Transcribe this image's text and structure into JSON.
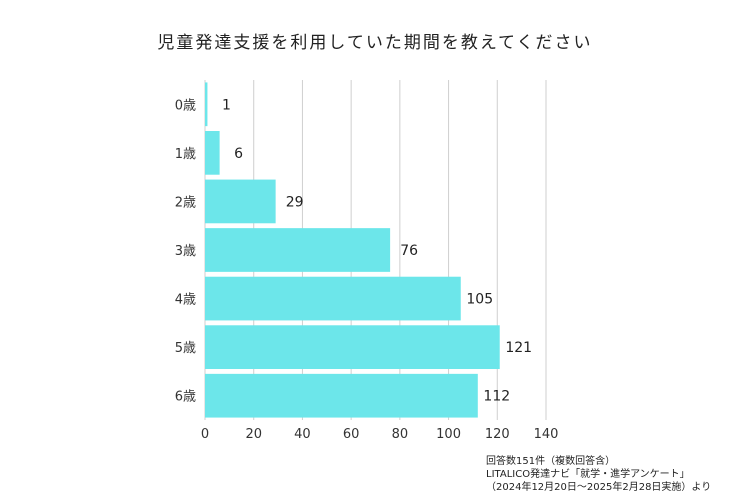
{
  "chart_data": {
    "type": "bar",
    "orientation": "horizontal",
    "title": "児童発達支援を利用していた期間を教えてください",
    "categories": [
      "0歳",
      "1歳",
      "2歳",
      "3歳",
      "4歳",
      "5歳",
      "6歳"
    ],
    "values": [
      1,
      6,
      29,
      76,
      105,
      121,
      112
    ],
    "xlim": [
      0,
      140
    ],
    "xticks": [
      0,
      20,
      40,
      60,
      80,
      100,
      120,
      140
    ],
    "grid": true,
    "bar_color": "#6ce6ea",
    "data_labels": true
  },
  "notes": [
    "回答数151件（複数回答含）",
    "LITALICO発達ナビ「就学・進学アンケート」",
    "（2024年12月20日～2025年2月28日実施）より"
  ]
}
